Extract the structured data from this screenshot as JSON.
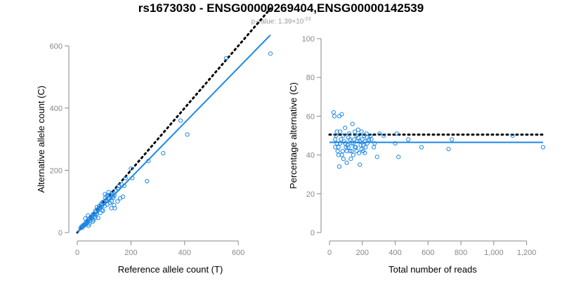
{
  "title": "rs1673030 - ENSG00000269404,ENSG00000142539",
  "subtitle": {
    "prefix": "p-value: 1.39×10",
    "exponent": "-23"
  },
  "colors": {
    "points": "#1e88e5",
    "fit": "#1e88e5",
    "reference": "#000000",
    "axis": "#888888",
    "subtitle": "#999999"
  },
  "chart_data": [
    {
      "type": "scatter",
      "title": "",
      "xlabel": "Reference allele count (T)",
      "ylabel": "Alternative allele count (C)",
      "xlim": [
        0,
        720
      ],
      "ylim": [
        0,
        630
      ],
      "xticks": [
        0,
        200,
        400,
        600
      ],
      "xtick_labels": [
        "0",
        "200",
        "400",
        "600"
      ],
      "yticks": [
        0,
        200,
        400,
        600
      ],
      "ytick_labels": [
        "0",
        "200",
        "400",
        "600"
      ],
      "grid": false,
      "reference_line": {
        "style": "dotted",
        "color": "#000000",
        "from": [
          0,
          0
        ],
        "to": [
          720,
          720
        ]
      },
      "fit_line": {
        "style": "solid",
        "color": "#1e88e5",
        "from": [
          0,
          0
        ],
        "to": [
          720,
          635
        ]
      },
      "points": [
        [
          12,
          14
        ],
        [
          15,
          18
        ],
        [
          18,
          16
        ],
        [
          20,
          22
        ],
        [
          22,
          20
        ],
        [
          25,
          25
        ],
        [
          28,
          24
        ],
        [
          30,
          30
        ],
        [
          30,
          45
        ],
        [
          33,
          27
        ],
        [
          35,
          35
        ],
        [
          38,
          33
        ],
        [
          40,
          40
        ],
        [
          42,
          22
        ],
        [
          45,
          44
        ],
        [
          47,
          38
        ],
        [
          50,
          50
        ],
        [
          52,
          47
        ],
        [
          55,
          45
        ],
        [
          57,
          55
        ],
        [
          60,
          60
        ],
        [
          62,
          52
        ],
        [
          65,
          58
        ],
        [
          68,
          70
        ],
        [
          70,
          66
        ],
        [
          72,
          60
        ],
        [
          75,
          74
        ],
        [
          78,
          47
        ],
        [
          80,
          78
        ],
        [
          82,
          85
        ],
        [
          85,
          80
        ],
        [
          88,
          92
        ],
        [
          90,
          88
        ],
        [
          92,
          72
        ],
        [
          95,
          98
        ],
        [
          98,
          96
        ],
        [
          100,
          100
        ],
        [
          102,
          85
        ],
        [
          105,
          112
        ],
        [
          108,
          104
        ],
        [
          110,
          118
        ],
        [
          112,
          90
        ],
        [
          115,
          108
        ],
        [
          118,
          120
        ],
        [
          120,
          110
        ],
        [
          122,
          95
        ],
        [
          125,
          122
        ],
        [
          128,
          100
        ],
        [
          130,
          128
        ],
        [
          132,
          116
        ],
        [
          135,
          112
        ],
        [
          138,
          120
        ],
        [
          140,
          78
        ],
        [
          145,
          135
        ],
        [
          150,
          100
        ],
        [
          155,
          150
        ],
        [
          160,
          110
        ],
        [
          165,
          155
        ],
        [
          170,
          115
        ],
        [
          175,
          150
        ],
        [
          180,
          175
        ],
        [
          200,
          205
        ],
        [
          205,
          175
        ],
        [
          260,
          165
        ],
        [
          265,
          230
        ],
        [
          320,
          255
        ],
        [
          385,
          360
        ],
        [
          410,
          315
        ],
        [
          555,
          560
        ],
        [
          720,
          575
        ],
        [
          40,
          55
        ],
        [
          58,
          35
        ],
        [
          67,
          48
        ],
        [
          73,
          82
        ],
        [
          86,
          63
        ],
        [
          96,
          70
        ],
        [
          103,
          123
        ],
        [
          117,
          130
        ],
        [
          127,
          78
        ],
        [
          137,
          88
        ],
        [
          152,
          140
        ],
        [
          60,
          40
        ],
        [
          35,
          30
        ],
        [
          45,
          28
        ]
      ]
    },
    {
      "type": "scatter",
      "title": "",
      "xlabel": "Total number of reads",
      "ylabel": "Percentage alternative (C)",
      "xlim": [
        0,
        1300
      ],
      "ylim": [
        0,
        100
      ],
      "xticks": [
        0,
        200,
        400,
        600,
        800,
        1000,
        1200
      ],
      "xtick_labels": [
        "0",
        "200",
        "400",
        "600",
        "800",
        "1,000",
        "1,200"
      ],
      "yticks": [
        0,
        20,
        40,
        60,
        80,
        100
      ],
      "ytick_labels": [
        "0",
        "20",
        "40",
        "60",
        "80",
        "100"
      ],
      "grid": false,
      "reference_line": {
        "style": "dotted",
        "color": "#000000",
        "y": 50.5
      },
      "fit_line": {
        "style": "solid",
        "color": "#1e88e5",
        "y": 46.5
      },
      "points": [
        [
          25,
          62
        ],
        [
          30,
          60
        ],
        [
          35,
          48
        ],
        [
          40,
          50
        ],
        [
          45,
          46
        ],
        [
          50,
          42
        ],
        [
          55,
          44
        ],
        [
          60,
          34
        ],
        [
          60,
          60
        ],
        [
          65,
          52
        ],
        [
          70,
          48
        ],
        [
          75,
          61
        ],
        [
          80,
          42
        ],
        [
          85,
          38
        ],
        [
          90,
          47
        ],
        [
          95,
          54
        ],
        [
          100,
          44
        ],
        [
          105,
          36
        ],
        [
          110,
          45
        ],
        [
          115,
          49
        ],
        [
          120,
          51
        ],
        [
          125,
          42
        ],
        [
          130,
          38
        ],
        [
          135,
          46
        ],
        [
          140,
          56
        ],
        [
          145,
          40
        ],
        [
          150,
          48
        ],
        [
          155,
          52
        ],
        [
          160,
          44
        ],
        [
          165,
          50
        ],
        [
          170,
          47
        ],
        [
          175,
          53
        ],
        [
          180,
          41
        ],
        [
          185,
          35
        ],
        [
          190,
          45
        ],
        [
          195,
          52
        ],
        [
          200,
          48
        ],
        [
          205,
          42
        ],
        [
          210,
          50
        ],
        [
          215,
          47
        ],
        [
          220,
          44
        ],
        [
          225,
          51
        ],
        [
          230,
          46
        ],
        [
          240,
          48
        ],
        [
          250,
          50
        ],
        [
          275,
          46
        ],
        [
          290,
          39
        ],
        [
          305,
          51
        ],
        [
          330,
          50
        ],
        [
          400,
          46
        ],
        [
          410,
          51
        ],
        [
          420,
          39
        ],
        [
          480,
          48
        ],
        [
          560,
          44
        ],
        [
          725,
          43
        ],
        [
          745,
          48
        ],
        [
          1115,
          50
        ],
        [
          1300,
          44
        ],
        [
          35,
          44
        ],
        [
          45,
          52
        ],
        [
          55,
          40
        ],
        [
          65,
          46
        ],
        [
          75,
          40
        ],
        [
          85,
          50
        ],
        [
          95,
          46
        ],
        [
          105,
          42
        ],
        [
          115,
          44
        ],
        [
          125,
          48
        ],
        [
          135,
          42
        ],
        [
          145,
          46
        ],
        [
          155,
          44
        ],
        [
          165,
          42
        ],
        [
          175,
          49
        ],
        [
          185,
          47
        ],
        [
          195,
          43
        ],
        [
          205,
          45
        ],
        [
          215,
          41
        ],
        [
          230,
          49
        ],
        [
          255,
          48
        ],
        [
          270,
          44
        ]
      ]
    }
  ]
}
